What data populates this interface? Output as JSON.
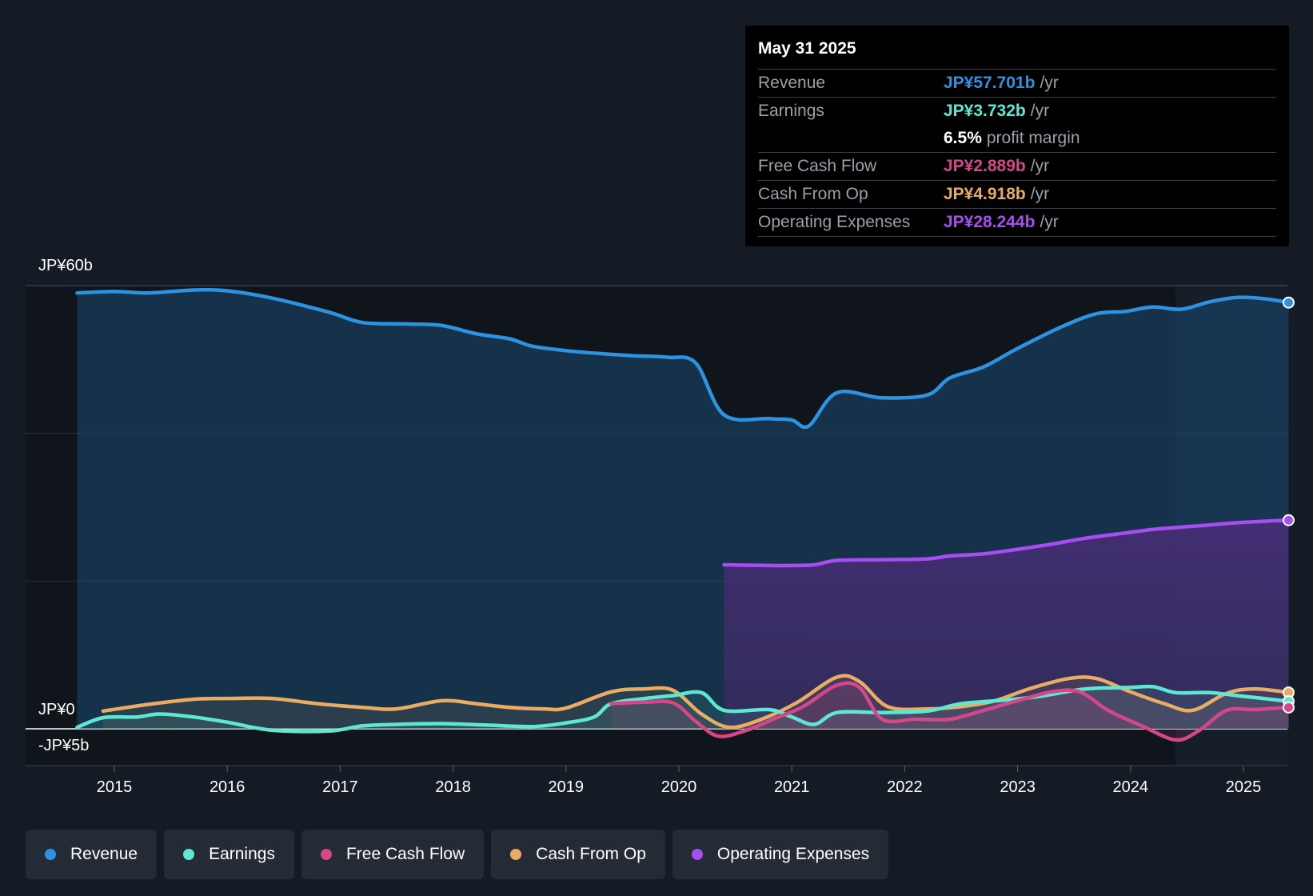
{
  "chart_data": {
    "type": "line",
    "title": "",
    "y_axis_labels": {
      "top": "JP¥60b",
      "zero": "JP¥0",
      "bottom": "-JP¥5b"
    },
    "ylim": [
      -5,
      60
    ],
    "x_ticks": [
      "2015",
      "2016",
      "2017",
      "2018",
      "2019",
      "2020",
      "2021",
      "2022",
      "2023",
      "2024",
      "2025"
    ],
    "colors": {
      "revenue": "#2d93e0",
      "earnings": "#5ee8d2",
      "free_cash_flow": "#d6478a",
      "cash_from_op": "#e8ad62",
      "operating_expenses": "#a64ef0"
    },
    "series": [
      {
        "key": "revenue",
        "name": "Revenue",
        "points": [
          [
            2014.67,
            59.0
          ],
          [
            2015.0,
            59.2
          ],
          [
            2015.3,
            59.0
          ],
          [
            2015.7,
            59.4
          ],
          [
            2016.0,
            59.3
          ],
          [
            2016.4,
            58.3
          ],
          [
            2016.9,
            56.4
          ],
          [
            2017.2,
            55.0
          ],
          [
            2017.6,
            54.8
          ],
          [
            2017.9,
            54.6
          ],
          [
            2018.2,
            53.5
          ],
          [
            2018.5,
            52.8
          ],
          [
            2018.7,
            51.8
          ],
          [
            2019.0,
            51.2
          ],
          [
            2019.3,
            50.8
          ],
          [
            2019.6,
            50.5
          ],
          [
            2019.9,
            50.3
          ],
          [
            2020.15,
            49.5
          ],
          [
            2020.4,
            42.5
          ],
          [
            2020.8,
            42.0
          ],
          [
            2021.0,
            41.8
          ],
          [
            2021.15,
            41.0
          ],
          [
            2021.4,
            45.5
          ],
          [
            2021.8,
            44.8
          ],
          [
            2022.2,
            45.2
          ],
          [
            2022.4,
            47.5
          ],
          [
            2022.7,
            49.0
          ],
          [
            2023.0,
            51.5
          ],
          [
            2023.4,
            54.5
          ],
          [
            2023.7,
            56.2
          ],
          [
            2023.95,
            56.5
          ],
          [
            2024.2,
            57.1
          ],
          [
            2024.45,
            56.8
          ],
          [
            2024.7,
            57.8
          ],
          [
            2024.95,
            58.4
          ],
          [
            2025.2,
            58.2
          ],
          [
            2025.4,
            57.7
          ]
        ]
      },
      {
        "key": "earnings",
        "name": "Earnings",
        "points": [
          [
            2014.67,
            0.2
          ],
          [
            2014.9,
            1.5
          ],
          [
            2015.2,
            1.6
          ],
          [
            2015.4,
            2.0
          ],
          [
            2015.7,
            1.6
          ],
          [
            2016.0,
            0.9
          ],
          [
            2016.4,
            -0.2
          ],
          [
            2016.9,
            -0.3
          ],
          [
            2017.2,
            0.4
          ],
          [
            2017.5,
            0.6
          ],
          [
            2017.9,
            0.7
          ],
          [
            2018.3,
            0.5
          ],
          [
            2018.7,
            0.3
          ],
          [
            2019.0,
            0.8
          ],
          [
            2019.25,
            1.6
          ],
          [
            2019.4,
            3.4
          ],
          [
            2019.7,
            4.1
          ],
          [
            2019.95,
            4.5
          ],
          [
            2020.2,
            4.9
          ],
          [
            2020.4,
            2.5
          ],
          [
            2020.8,
            2.6
          ],
          [
            2021.0,
            1.6
          ],
          [
            2021.2,
            0.6
          ],
          [
            2021.4,
            2.2
          ],
          [
            2021.8,
            2.2
          ],
          [
            2022.2,
            2.4
          ],
          [
            2022.5,
            3.4
          ],
          [
            2022.9,
            3.9
          ],
          [
            2023.2,
            4.4
          ],
          [
            2023.6,
            5.4
          ],
          [
            2024.0,
            5.6
          ],
          [
            2024.2,
            5.7
          ],
          [
            2024.4,
            4.9
          ],
          [
            2024.7,
            4.9
          ],
          [
            2025.0,
            4.4
          ],
          [
            2025.4,
            3.73
          ]
        ]
      },
      {
        "key": "free_cash_flow",
        "name": "Free Cash Flow",
        "points": [
          [
            2019.4,
            3.4
          ],
          [
            2019.7,
            3.6
          ],
          [
            2019.95,
            3.5
          ],
          [
            2020.15,
            1.0
          ],
          [
            2020.35,
            -1.0
          ],
          [
            2020.6,
            -0.2
          ],
          [
            2020.85,
            1.4
          ],
          [
            2021.1,
            3.0
          ],
          [
            2021.4,
            5.9
          ],
          [
            2021.6,
            5.6
          ],
          [
            2021.8,
            1.3
          ],
          [
            2022.1,
            1.3
          ],
          [
            2022.4,
            1.3
          ],
          [
            2022.7,
            2.5
          ],
          [
            2023.0,
            3.8
          ],
          [
            2023.3,
            5.0
          ],
          [
            2023.55,
            5.0
          ],
          [
            2023.8,
            2.5
          ],
          [
            2024.1,
            0.4
          ],
          [
            2024.4,
            -1.5
          ],
          [
            2024.6,
            -0.3
          ],
          [
            2024.85,
            2.5
          ],
          [
            2025.1,
            2.6
          ],
          [
            2025.4,
            2.89
          ]
        ]
      },
      {
        "key": "cash_from_op",
        "name": "Cash From Op",
        "points": [
          [
            2014.9,
            2.4
          ],
          [
            2015.3,
            3.3
          ],
          [
            2015.7,
            4.0
          ],
          [
            2016.0,
            4.1
          ],
          [
            2016.4,
            4.1
          ],
          [
            2016.8,
            3.4
          ],
          [
            2017.2,
            2.9
          ],
          [
            2017.5,
            2.7
          ],
          [
            2017.9,
            3.8
          ],
          [
            2018.2,
            3.4
          ],
          [
            2018.5,
            2.9
          ],
          [
            2018.8,
            2.7
          ],
          [
            2019.0,
            2.8
          ],
          [
            2019.4,
            5.0
          ],
          [
            2019.7,
            5.4
          ],
          [
            2019.95,
            5.2
          ],
          [
            2020.2,
            2.0
          ],
          [
            2020.45,
            0.2
          ],
          [
            2020.75,
            1.4
          ],
          [
            2021.05,
            3.6
          ],
          [
            2021.4,
            7.0
          ],
          [
            2021.6,
            6.4
          ],
          [
            2021.85,
            3.0
          ],
          [
            2022.2,
            2.7
          ],
          [
            2022.5,
            3.0
          ],
          [
            2022.8,
            3.8
          ],
          [
            2023.1,
            5.4
          ],
          [
            2023.45,
            6.8
          ],
          [
            2023.7,
            6.8
          ],
          [
            2024.0,
            5.0
          ],
          [
            2024.3,
            3.4
          ],
          [
            2024.55,
            2.5
          ],
          [
            2024.85,
            4.8
          ],
          [
            2025.1,
            5.4
          ],
          [
            2025.4,
            4.92
          ]
        ]
      },
      {
        "key": "operating_expenses",
        "name": "Operating Expenses",
        "points": [
          [
            2020.4,
            22.2
          ],
          [
            2020.8,
            22.1
          ],
          [
            2021.0,
            22.1
          ],
          [
            2021.2,
            22.2
          ],
          [
            2021.4,
            22.8
          ],
          [
            2021.8,
            22.9
          ],
          [
            2022.2,
            23.0
          ],
          [
            2022.4,
            23.4
          ],
          [
            2022.7,
            23.7
          ],
          [
            2023.0,
            24.3
          ],
          [
            2023.3,
            25.0
          ],
          [
            2023.6,
            25.8
          ],
          [
            2023.95,
            26.5
          ],
          [
            2024.2,
            27.0
          ],
          [
            2024.45,
            27.3
          ],
          [
            2024.7,
            27.6
          ],
          [
            2024.95,
            27.9
          ],
          [
            2025.2,
            28.1
          ],
          [
            2025.4,
            28.24
          ]
        ]
      }
    ]
  },
  "tooltip": {
    "date": "May 31 2025",
    "rows": [
      {
        "name": "Revenue",
        "value": "JP¥57.701b",
        "unit": "/yr"
      },
      {
        "name": "Earnings",
        "value": "JP¥3.732b",
        "unit": "/yr"
      },
      {
        "name": "",
        "value": "6.5%",
        "unit": "profit margin"
      },
      {
        "name": "Free Cash Flow",
        "value": "JP¥2.889b",
        "unit": "/yr"
      },
      {
        "name": "Cash From Op",
        "value": "JP¥4.918b",
        "unit": "/yr"
      },
      {
        "name": "Operating Expenses",
        "value": "JP¥28.244b",
        "unit": "/yr"
      }
    ]
  },
  "legend": [
    {
      "key": "revenue",
      "label": "Revenue"
    },
    {
      "key": "earnings",
      "label": "Earnings"
    },
    {
      "key": "free_cash_flow",
      "label": "Free Cash Flow"
    },
    {
      "key": "cash_from_op",
      "label": "Cash From Op"
    },
    {
      "key": "operating_expenses",
      "label": "Operating Expenses"
    }
  ]
}
